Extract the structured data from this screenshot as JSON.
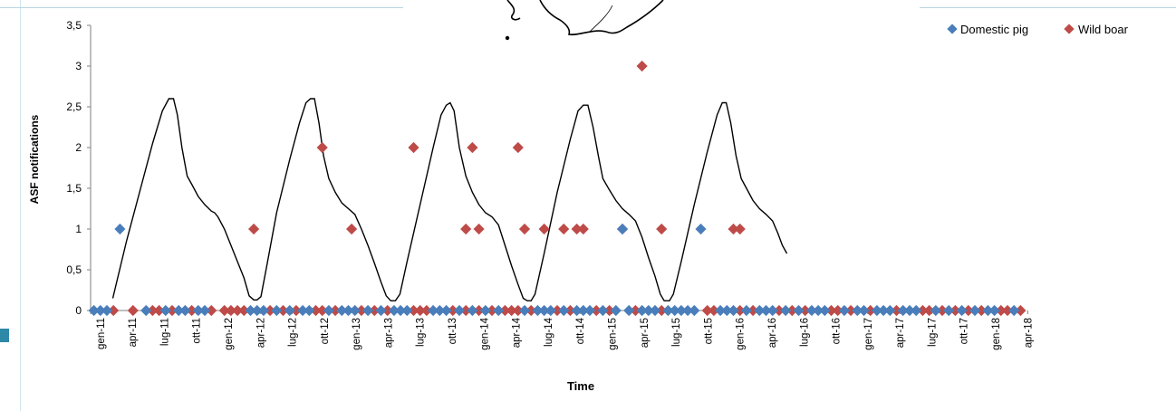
{
  "chart_data": {
    "type": "scatter",
    "title": "",
    "xlabel": "Time",
    "ylabel": "ASF notifications",
    "ylim": [
      0,
      3.5
    ],
    "y_ticks": [
      "0",
      "0,5",
      "1",
      "1,5",
      "2",
      "2,5",
      "3",
      "3,5"
    ],
    "x_tick_labels": [
      "gen-11",
      "apr-11",
      "lug-11",
      "ott-11",
      "gen-12",
      "apr-12",
      "lug-12",
      "ott-12",
      "gen-13",
      "apr-13",
      "lug-13",
      "ott-13",
      "gen-14",
      "apr-14",
      "lug-14",
      "ott-14",
      "gen-15",
      "apr-15",
      "lug-15",
      "ott-15",
      "gen-16",
      "apr-16",
      "lug-16",
      "ott-16",
      "gen-17",
      "apr-17",
      "lug-17",
      "ott-17",
      "gen-18",
      "apr-18"
    ],
    "legend": {
      "placement": "top-right"
    },
    "colors": {
      "domestic_pig": "#4a7ebb",
      "wild_boar": "#be4b48",
      "line": "#000000"
    },
    "series": [
      {
        "name": "Domestic pig",
        "marker": "diamond",
        "points": [
          [
            0,
            0
          ],
          [
            1,
            0
          ],
          [
            2,
            0
          ],
          [
            4,
            1
          ],
          [
            8,
            0
          ],
          [
            11,
            0
          ],
          [
            13,
            0
          ],
          [
            14,
            0
          ],
          [
            16,
            0
          ],
          [
            17,
            0
          ],
          [
            24,
            0
          ],
          [
            25,
            0
          ],
          [
            26,
            0
          ],
          [
            28,
            0
          ],
          [
            30,
            0
          ],
          [
            32,
            0
          ],
          [
            33,
            0
          ],
          [
            36,
            0
          ],
          [
            38,
            0
          ],
          [
            39,
            0
          ],
          [
            40,
            0
          ],
          [
            42,
            0
          ],
          [
            44,
            0
          ],
          [
            46,
            0
          ],
          [
            47,
            0
          ],
          [
            48,
            0
          ],
          [
            52,
            0
          ],
          [
            53,
            0
          ],
          [
            54,
            0
          ],
          [
            56,
            0
          ],
          [
            58,
            0
          ],
          [
            60,
            0
          ],
          [
            62,
            0
          ],
          [
            66,
            0
          ],
          [
            68,
            0
          ],
          [
            69,
            0
          ],
          [
            70,
            0
          ],
          [
            72,
            0
          ],
          [
            74,
            0
          ],
          [
            75,
            0
          ],
          [
            76,
            0
          ],
          [
            78,
            0
          ],
          [
            80,
            0
          ],
          [
            81,
            1
          ],
          [
            82,
            0
          ],
          [
            84,
            0
          ],
          [
            85,
            0
          ],
          [
            86,
            0
          ],
          [
            88,
            0
          ],
          [
            89,
            0
          ],
          [
            90,
            0
          ],
          [
            91,
            0
          ],
          [
            92,
            0
          ],
          [
            93,
            1
          ],
          [
            96,
            0
          ],
          [
            97,
            0
          ],
          [
            98,
            0
          ],
          [
            100,
            0
          ],
          [
            102,
            0
          ],
          [
            103,
            0
          ],
          [
            104,
            0
          ],
          [
            106,
            0
          ],
          [
            108,
            0
          ],
          [
            110,
            0
          ],
          [
            111,
            0
          ],
          [
            112,
            0
          ],
          [
            115,
            0
          ],
          [
            117,
            0
          ],
          [
            118,
            0
          ],
          [
            120,
            0
          ],
          [
            121,
            0
          ],
          [
            122,
            0
          ],
          [
            124,
            0
          ],
          [
            125,
            0
          ],
          [
            126,
            0
          ],
          [
            129,
            0
          ],
          [
            131,
            0
          ],
          [
            133,
            0
          ],
          [
            135,
            0
          ],
          [
            137,
            0
          ],
          [
            138,
            0
          ],
          [
            141,
            0
          ]
        ]
      },
      {
        "name": "Wild boar",
        "marker": "diamond",
        "points": [
          [
            3,
            0
          ],
          [
            6,
            0
          ],
          [
            9,
            0
          ],
          [
            10,
            0
          ],
          [
            12,
            0
          ],
          [
            15,
            0
          ],
          [
            18,
            0
          ],
          [
            20,
            0
          ],
          [
            21,
            0
          ],
          [
            22,
            0
          ],
          [
            23,
            0
          ],
          [
            27,
            0
          ],
          [
            29,
            0
          ],
          [
            31,
            0
          ],
          [
            34,
            0
          ],
          [
            35,
            0
          ],
          [
            37,
            0
          ],
          [
            41,
            0
          ],
          [
            43,
            0
          ],
          [
            45,
            0
          ],
          [
            49,
            0
          ],
          [
            50,
            0
          ],
          [
            51,
            0
          ],
          [
            55,
            0
          ],
          [
            57,
            0
          ],
          [
            59,
            0
          ],
          [
            61,
            0
          ],
          [
            63,
            0
          ],
          [
            64,
            0
          ],
          [
            65,
            0
          ],
          [
            67,
            0
          ],
          [
            71,
            0
          ],
          [
            73,
            0
          ],
          [
            77,
            0
          ],
          [
            79,
            0
          ],
          [
            83,
            0
          ],
          [
            87,
            0
          ],
          [
            94,
            0
          ],
          [
            95,
            0
          ],
          [
            99,
            0
          ],
          [
            101,
            0
          ],
          [
            105,
            0
          ],
          [
            107,
            0
          ],
          [
            109,
            0
          ],
          [
            113,
            0
          ],
          [
            114,
            0
          ],
          [
            116,
            0
          ],
          [
            119,
            0
          ],
          [
            123,
            0
          ],
          [
            127,
            0
          ],
          [
            128,
            0
          ],
          [
            130,
            0
          ],
          [
            132,
            0
          ],
          [
            134,
            0
          ],
          [
            136,
            0
          ],
          [
            139,
            0
          ],
          [
            140,
            0
          ],
          [
            142,
            0
          ],
          [
            24.5,
            1
          ],
          [
            35,
            2
          ],
          [
            39.5,
            1
          ],
          [
            49,
            2
          ],
          [
            57,
            1
          ],
          [
            58,
            2
          ],
          [
            59,
            1
          ],
          [
            65,
            2
          ],
          [
            66,
            1
          ],
          [
            69,
            1
          ],
          [
            72,
            1
          ],
          [
            74,
            1
          ],
          [
            75,
            1
          ],
          [
            81,
            1
          ],
          [
            84,
            3
          ],
          [
            87,
            1
          ],
          [
            98,
            1
          ],
          [
            99,
            1
          ]
        ]
      }
    ],
    "line": {
      "name": "",
      "points": [
        [
          2.9,
          0.15
        ],
        [
          3.5,
          0.35
        ],
        [
          5,
          0.85
        ],
        [
          7,
          1.45
        ],
        [
          9,
          2.05
        ],
        [
          10.5,
          2.45
        ],
        [
          11.5,
          2.6
        ],
        [
          12.2,
          2.6
        ],
        [
          12.8,
          2.4
        ],
        [
          13.5,
          2.0
        ],
        [
          14.3,
          1.65
        ],
        [
          15,
          1.55
        ],
        [
          16,
          1.4
        ],
        [
          17,
          1.3
        ],
        [
          18,
          1.22
        ],
        [
          18.5,
          1.2
        ],
        [
          19,
          1.15
        ],
        [
          20,
          1.0
        ],
        [
          21,
          0.8
        ],
        [
          22,
          0.6
        ],
        [
          23,
          0.4
        ],
        [
          23.8,
          0.18
        ],
        [
          24.5,
          0.13
        ],
        [
          25,
          0.13
        ],
        [
          25.6,
          0.17
        ],
        [
          26.5,
          0.55
        ],
        [
          28,
          1.2
        ],
        [
          30,
          1.85
        ],
        [
          31.5,
          2.3
        ],
        [
          32.5,
          2.55
        ],
        [
          33.2,
          2.6
        ],
        [
          33.8,
          2.6
        ],
        [
          34.5,
          2.3
        ],
        [
          35.2,
          1.9
        ],
        [
          36,
          1.62
        ],
        [
          37,
          1.45
        ],
        [
          38,
          1.32
        ],
        [
          39,
          1.25
        ],
        [
          40,
          1.18
        ],
        [
          41,
          1.0
        ],
        [
          42,
          0.8
        ],
        [
          43,
          0.58
        ],
        [
          44,
          0.35
        ],
        [
          44.8,
          0.18
        ],
        [
          45.5,
          0.12
        ],
        [
          46.2,
          0.12
        ],
        [
          46.9,
          0.2
        ],
        [
          48,
          0.6
        ],
        [
          50,
          1.3
        ],
        [
          52,
          2.0
        ],
        [
          53.2,
          2.4
        ],
        [
          54,
          2.52
        ],
        [
          54.6,
          2.55
        ],
        [
          55.2,
          2.45
        ],
        [
          56,
          2.0
        ],
        [
          57,
          1.65
        ],
        [
          58,
          1.45
        ],
        [
          59,
          1.3
        ],
        [
          60,
          1.2
        ],
        [
          61,
          1.15
        ],
        [
          62,
          1.05
        ],
        [
          63,
          0.8
        ],
        [
          64,
          0.55
        ],
        [
          65,
          0.32
        ],
        [
          65.8,
          0.15
        ],
        [
          66.4,
          0.12
        ],
        [
          67,
          0.12
        ],
        [
          67.6,
          0.2
        ],
        [
          69,
          0.7
        ],
        [
          71,
          1.45
        ],
        [
          73,
          2.1
        ],
        [
          74.2,
          2.45
        ],
        [
          75,
          2.52
        ],
        [
          75.7,
          2.52
        ],
        [
          76.5,
          2.25
        ],
        [
          77.3,
          1.9
        ],
        [
          78,
          1.62
        ],
        [
          79,
          1.48
        ],
        [
          80,
          1.35
        ],
        [
          81,
          1.25
        ],
        [
          82,
          1.18
        ],
        [
          83,
          1.1
        ],
        [
          84,
          0.9
        ],
        [
          85,
          0.65
        ],
        [
          86,
          0.42
        ],
        [
          86.8,
          0.2
        ],
        [
          87.4,
          0.12
        ],
        [
          88.2,
          0.12
        ],
        [
          88.8,
          0.2
        ],
        [
          90,
          0.6
        ],
        [
          92,
          1.3
        ],
        [
          94,
          1.95
        ],
        [
          95.5,
          2.4
        ],
        [
          96.3,
          2.55
        ],
        [
          96.9,
          2.55
        ],
        [
          97.6,
          2.3
        ],
        [
          98.4,
          1.9
        ],
        [
          99.2,
          1.62
        ],
        [
          100,
          1.5
        ],
        [
          101,
          1.35
        ],
        [
          102,
          1.25
        ],
        [
          103,
          1.18
        ],
        [
          104,
          1.1
        ],
        [
          104.8,
          0.95
        ],
        [
          105.5,
          0.8
        ],
        [
          106.2,
          0.7
        ]
      ]
    }
  }
}
